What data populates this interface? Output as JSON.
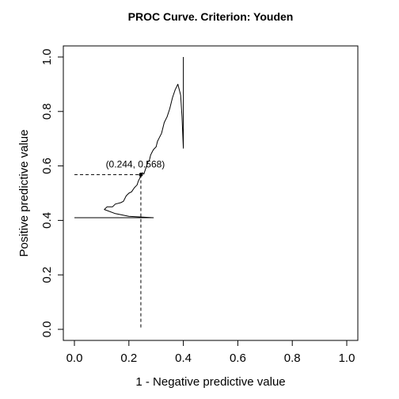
{
  "chart_data": {
    "type": "line",
    "title": "PROC Curve. Criterion: Youden",
    "xlabel": "1 - Negative predictive value",
    "ylabel": "Positive predictive value",
    "xlim": [
      0,
      1
    ],
    "ylim": [
      0,
      1
    ],
    "x_ticks": [
      "0.0",
      "0.2",
      "0.4",
      "0.6",
      "0.8",
      "1.0"
    ],
    "y_ticks": [
      "0.0",
      "0.2",
      "0.4",
      "0.6",
      "0.8",
      "1.0"
    ],
    "grid": false,
    "series": [
      {
        "x": [
          0.0,
          0.29,
          0.2,
          0.15,
          0.11,
          0.12,
          0.14,
          0.15,
          0.17,
          0.18,
          0.19,
          0.2,
          0.21,
          0.22,
          0.23,
          0.235,
          0.24,
          0.244,
          0.25,
          0.255,
          0.26,
          0.265,
          0.27,
          0.275,
          0.28,
          0.285,
          0.29,
          0.3,
          0.305,
          0.31,
          0.32,
          0.33,
          0.34,
          0.35,
          0.355,
          0.36,
          0.37,
          0.38,
          0.39,
          0.395,
          0.4,
          0.4
        ],
        "y": [
          0.41,
          0.41,
          0.415,
          0.425,
          0.44,
          0.45,
          0.45,
          0.46,
          0.465,
          0.47,
          0.49,
          0.5,
          0.505,
          0.52,
          0.53,
          0.545,
          0.555,
          0.568,
          0.575,
          0.57,
          0.585,
          0.6,
          0.615,
          0.62,
          0.64,
          0.65,
          0.66,
          0.67,
          0.69,
          0.7,
          0.72,
          0.76,
          0.78,
          0.81,
          0.83,
          0.85,
          0.88,
          0.9,
          0.86,
          0.78,
          0.665,
          1.0
        ]
      }
    ],
    "annotation": {
      "label": "(0.244, 0.568)",
      "x": 0.244,
      "y": 0.568
    }
  }
}
